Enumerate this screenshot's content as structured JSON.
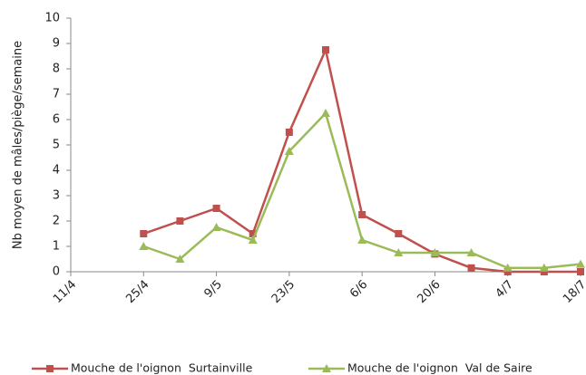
{
  "chart_data": {
    "type": "line",
    "y_label": "Nb moyen de mâles/piège/semaine",
    "categories": [
      "11/4",
      null,
      "25/4",
      null,
      "9/5",
      null,
      "23/5",
      null,
      "6/6",
      null,
      "20/6",
      null,
      "4/7",
      null,
      "18/7"
    ],
    "series": [
      {
        "name": "Mouche de l'oignon  Surtainville",
        "color": "#c0504d",
        "marker": "square",
        "values": [
          null,
          null,
          1.5,
          2,
          2.5,
          1.5,
          5.5,
          8.75,
          2.25,
          1.5,
          0.7,
          0.15,
          0,
          0,
          0
        ]
      },
      {
        "name": "Mouche de l'oignon  Val de Saire",
        "color": "#9bbb59",
        "marker": "triangle",
        "values": [
          null,
          null,
          1,
          0.5,
          1.75,
          1.25,
          4.75,
          6.25,
          1.25,
          0.75,
          0.75,
          0.75,
          0.15,
          0.15,
          0.3
        ]
      }
    ],
    "ylim": [
      0,
      10
    ],
    "yticks": [
      0,
      1,
      2,
      3,
      4,
      5,
      6,
      7,
      8,
      9,
      10
    ],
    "grid": false,
    "legend": "bottom"
  }
}
